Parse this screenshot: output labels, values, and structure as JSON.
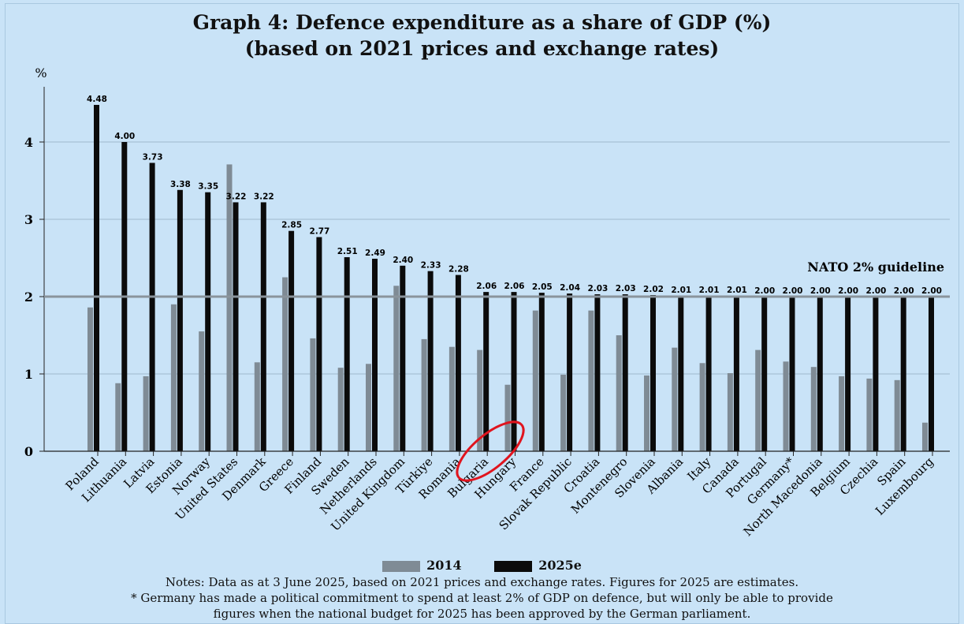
{
  "chart_data": {
    "type": "bar",
    "title": "Graph 4: Defence expenditure as a share of GDP (%)",
    "subtitle": "(based on 2021 prices and exchange rates)",
    "ylabel": "%",
    "ylim": [
      0,
      4.8
    ],
    "yticks": [
      0,
      1,
      2,
      3,
      4
    ],
    "grid": true,
    "legend_position": "bottom",
    "categories": [
      "Poland",
      "Lithuania",
      "Latvia",
      "Estonia",
      "Norway",
      "United States",
      "Denmark",
      "Greece",
      "Finland",
      "Sweden",
      "Netherlands",
      "United Kingdom",
      "Türkiye",
      "Romania",
      "Bulgaria",
      "Hungary",
      "France",
      "Slovak Republic",
      "Croatia",
      "Montenegro",
      "Slovenia",
      "Albania",
      "Italy",
      "Canada",
      "Portugal",
      "Germany*",
      "North Macedonia",
      "Belgium",
      "Czechia",
      "Spain",
      "Luxembourg"
    ],
    "series": [
      {
        "name": "2014",
        "color": "#7f8b95",
        "values": [
          1.86,
          0.88,
          0.97,
          1.9,
          1.55,
          3.71,
          1.15,
          2.25,
          1.46,
          1.08,
          1.13,
          2.14,
          1.45,
          1.35,
          1.31,
          0.86,
          1.82,
          0.99,
          1.82,
          1.5,
          0.98,
          1.34,
          1.14,
          1.01,
          1.31,
          1.16,
          1.09,
          0.97,
          0.94,
          0.92,
          0.37
        ]
      },
      {
        "name": "2025e",
        "color": "#0b0b0b",
        "values": [
          4.48,
          4.0,
          3.73,
          3.38,
          3.35,
          3.22,
          3.22,
          2.85,
          2.77,
          2.51,
          2.49,
          2.4,
          2.33,
          2.28,
          2.06,
          2.06,
          2.05,
          2.04,
          2.03,
          2.03,
          2.02,
          2.01,
          2.01,
          2.01,
          2.0,
          2.0,
          2.0,
          2.0,
          2.0,
          2.0,
          2.0
        ],
        "labels": [
          "4.48",
          "4.00",
          "3.73",
          "3.38",
          "3.35",
          "3.22",
          "3.22",
          "2.85",
          "2.77",
          "2.51",
          "2.49",
          "2.40",
          "2.33",
          "2.28",
          "2.06",
          "2.06",
          "2.05",
          "2.04",
          "2.03",
          "2.03",
          "2.02",
          "2.01",
          "2.01",
          "2.01",
          "2.00",
          "2.00",
          "2.00",
          "2.00",
          "2.00",
          "2.00",
          "2.00"
        ]
      }
    ],
    "guideline": {
      "value": 2,
      "label": "NATO 2% guideline",
      "color": "#8a949c"
    },
    "annotation": {
      "type": "red-ellipse",
      "around": "Hungary"
    }
  },
  "legend": {
    "item_2014": "2014",
    "item_2025": "2025e"
  },
  "notes": {
    "line1": "Notes: Data as at 3 June 2025, based on 2021 prices and exchange rates. Figures for 2025 are estimates.",
    "line2": "* Germany has made a political commitment to spend at least 2% of GDP on defence, but will only be able to provide",
    "line3": "figures when the national budget for 2025 has been approved by the German parliament."
  }
}
